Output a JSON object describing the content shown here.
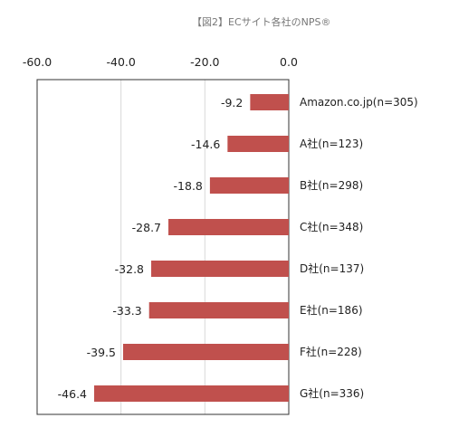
{
  "chart_data": {
    "type": "bar",
    "orientation": "horizontal",
    "title": "【図2】ECサイト各社のNPS®",
    "categories": [
      "Amazon.co.jp(n=305)",
      "A社(n=123)",
      "B社(n=298)",
      "C社(n=348)",
      "D社(n=137)",
      "E社(n=186)",
      "F社(n=228)",
      "G社(n=336)"
    ],
    "values": [
      -9.2,
      -14.6,
      -18.8,
      -28.7,
      -32.8,
      -33.3,
      -39.5,
      -46.4
    ],
    "value_labels": [
      "-9.2",
      "-14.6",
      "-18.8",
      "-28.7",
      "-32.8",
      "-33.3",
      "-39.5",
      "-46.4"
    ],
    "xlim": [
      -60.0,
      0.0
    ],
    "xticks": [
      "-60.0",
      "-40.0",
      "-20.0",
      "0.0"
    ],
    "xtick_values": [
      -60,
      -40,
      -20,
      0
    ],
    "axis_position": "top",
    "grid": true,
    "bar_color": "#c0504d",
    "grid_color": "#d9d9d9"
  }
}
